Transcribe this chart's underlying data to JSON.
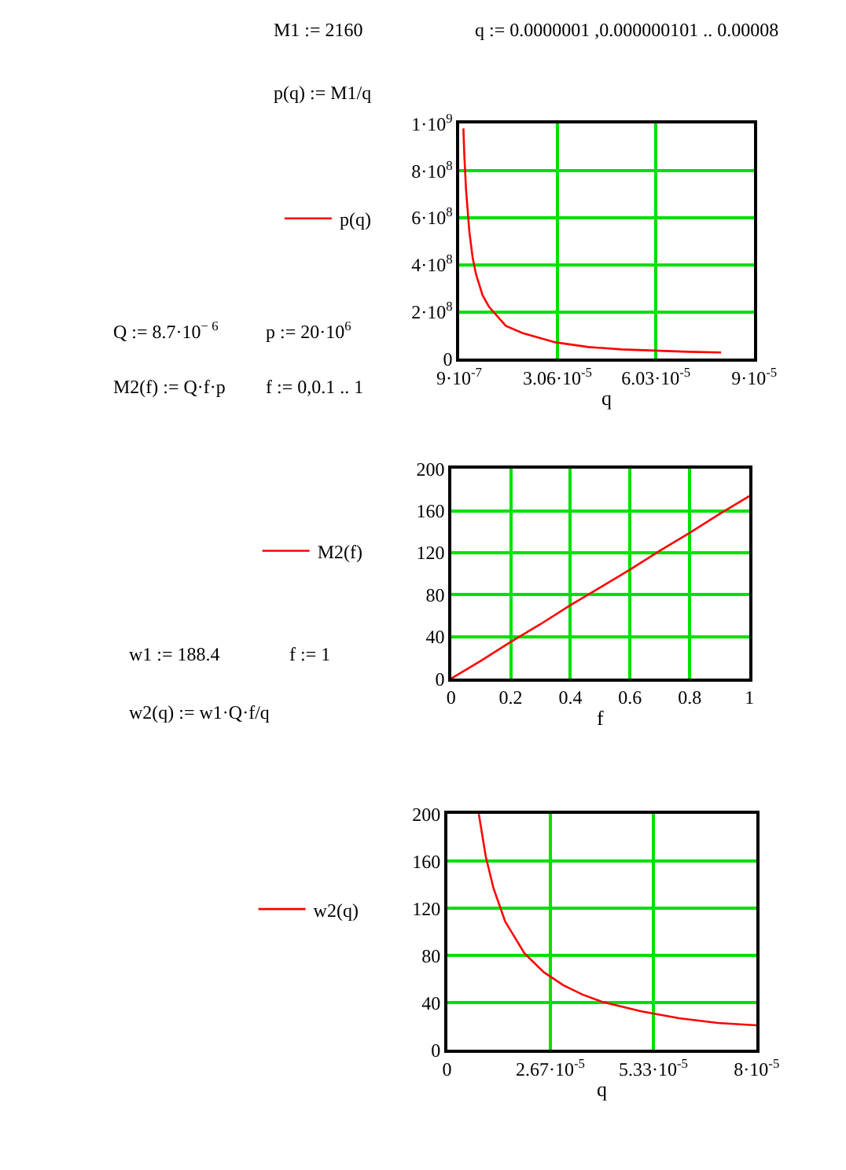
{
  "chart_data": [
    {
      "type": "line",
      "xlabel": "q",
      "annotations": [
        "M1 := 2160",
        "q := 0.0000001 ,0.000000101 .. 0.00008",
        "p(q) := M1/q"
      ],
      "x": [
        2.2e-06,
        2.5e-06,
        3e-06,
        4e-06,
        5e-06,
        6e-06,
        8e-06,
        1e-05,
        1.5e-05,
        2e-05,
        3e-05,
        4e-05,
        5e-05,
        6e-05,
        7e-05,
        8e-05
      ],
      "series": [
        {
          "name": "p(q)",
          "color": "#ff0000",
          "values": [
            980000000.0,
            860000000.0,
            720000000.0,
            540000000.0,
            430000000.0,
            360000000.0,
            270000000.0,
            220000000.0,
            140000000.0,
            110000000.0,
            70000000.0,
            50000000.0,
            40000000.0,
            35000000.0,
            30000000.0,
            27000000.0
          ]
        }
      ],
      "xlim": [
        9e-07,
        9e-05
      ],
      "xticks": [
        {
          "value": 9e-07,
          "label": "9·10$^{-7}$"
        },
        {
          "value": 3.06e-05,
          "label": "3.06·10$^{-5}$"
        },
        {
          "value": 6.03e-05,
          "label": "6.03·10$^{-5}$"
        },
        {
          "value": 9e-05,
          "label": "9·10$^{-5}$"
        }
      ],
      "ylim": [
        0,
        1000000000.0
      ],
      "yticks": [
        0,
        {
          "value": 200000000.0,
          "label": "2·10$^{8}$"
        },
        {
          "value": 400000000.0,
          "label": "4·10$^{8}$"
        },
        {
          "value": 600000000.0,
          "label": "6·10$^{8}$"
        },
        {
          "value": 800000000.0,
          "label": "8·10$^{8}$"
        },
        {
          "value": 1000000000.0,
          "label": "1·10$^{9}$"
        }
      ],
      "grid": true,
      "legend": "left",
      "marker": "none",
      "line_style": "solid"
    },
    {
      "type": "line",
      "xlabel": "f",
      "annotations": [
        "Q := 8.7·10$^{− 6}$",
        "p := 20·10$^{6}$",
        "M2(f) := Q·f·p",
        "f := 0,0.1 .. 1"
      ],
      "x": [
        0,
        0.1,
        0.2,
        0.3,
        0.4,
        0.5,
        0.6,
        0.7,
        0.8,
        0.9,
        1
      ],
      "series": [
        {
          "name": "M2(f)",
          "color": "#ff0000",
          "values": [
            0,
            17,
            35,
            52,
            70,
            87,
            104,
            122,
            139,
            157,
            174
          ]
        }
      ],
      "xlim": [
        0,
        1
      ],
      "xticks": [
        0,
        0.2,
        0.4,
        0.6,
        0.8,
        1
      ],
      "ylim": [
        0,
        200
      ],
      "yticks": [
        0,
        40,
        80,
        120,
        160,
        200
      ],
      "grid": true,
      "legend": "left",
      "marker": "none",
      "line_style": "solid"
    },
    {
      "type": "line",
      "xlabel": "q",
      "annotations": [
        "w1 := 188.4",
        "f := 1",
        "w2(q) := w1·Q·f/q"
      ],
      "x": [
        8.2e-06,
        1e-05,
        1.2e-05,
        1.5e-05,
        2e-05,
        2.5e-05,
        3e-05,
        3.5e-05,
        4e-05,
        5e-05,
        6e-05,
        7e-05,
        8e-05
      ],
      "series": [
        {
          "name": "w2(q)",
          "color": "#ff0000",
          "values": [
            200,
            164,
            137,
            109,
            82,
            66,
            55,
            47,
            41,
            33,
            27,
            23,
            21
          ]
        }
      ],
      "xlim": [
        0,
        8e-05
      ],
      "xticks": [
        0,
        {
          "value": 2.67e-05,
          "label": "2.67·10$^{-5}$"
        },
        {
          "value": 5.33e-05,
          "label": "5.33·10$^{-5}$"
        },
        {
          "value": 8e-05,
          "label": "8·10$^{-5}$"
        }
      ],
      "ylim": [
        0,
        200
      ],
      "yticks": [
        0,
        40,
        80,
        120,
        160,
        200
      ],
      "grid": true,
      "legend": "left",
      "marker": "none",
      "line_style": "solid"
    }
  ]
}
